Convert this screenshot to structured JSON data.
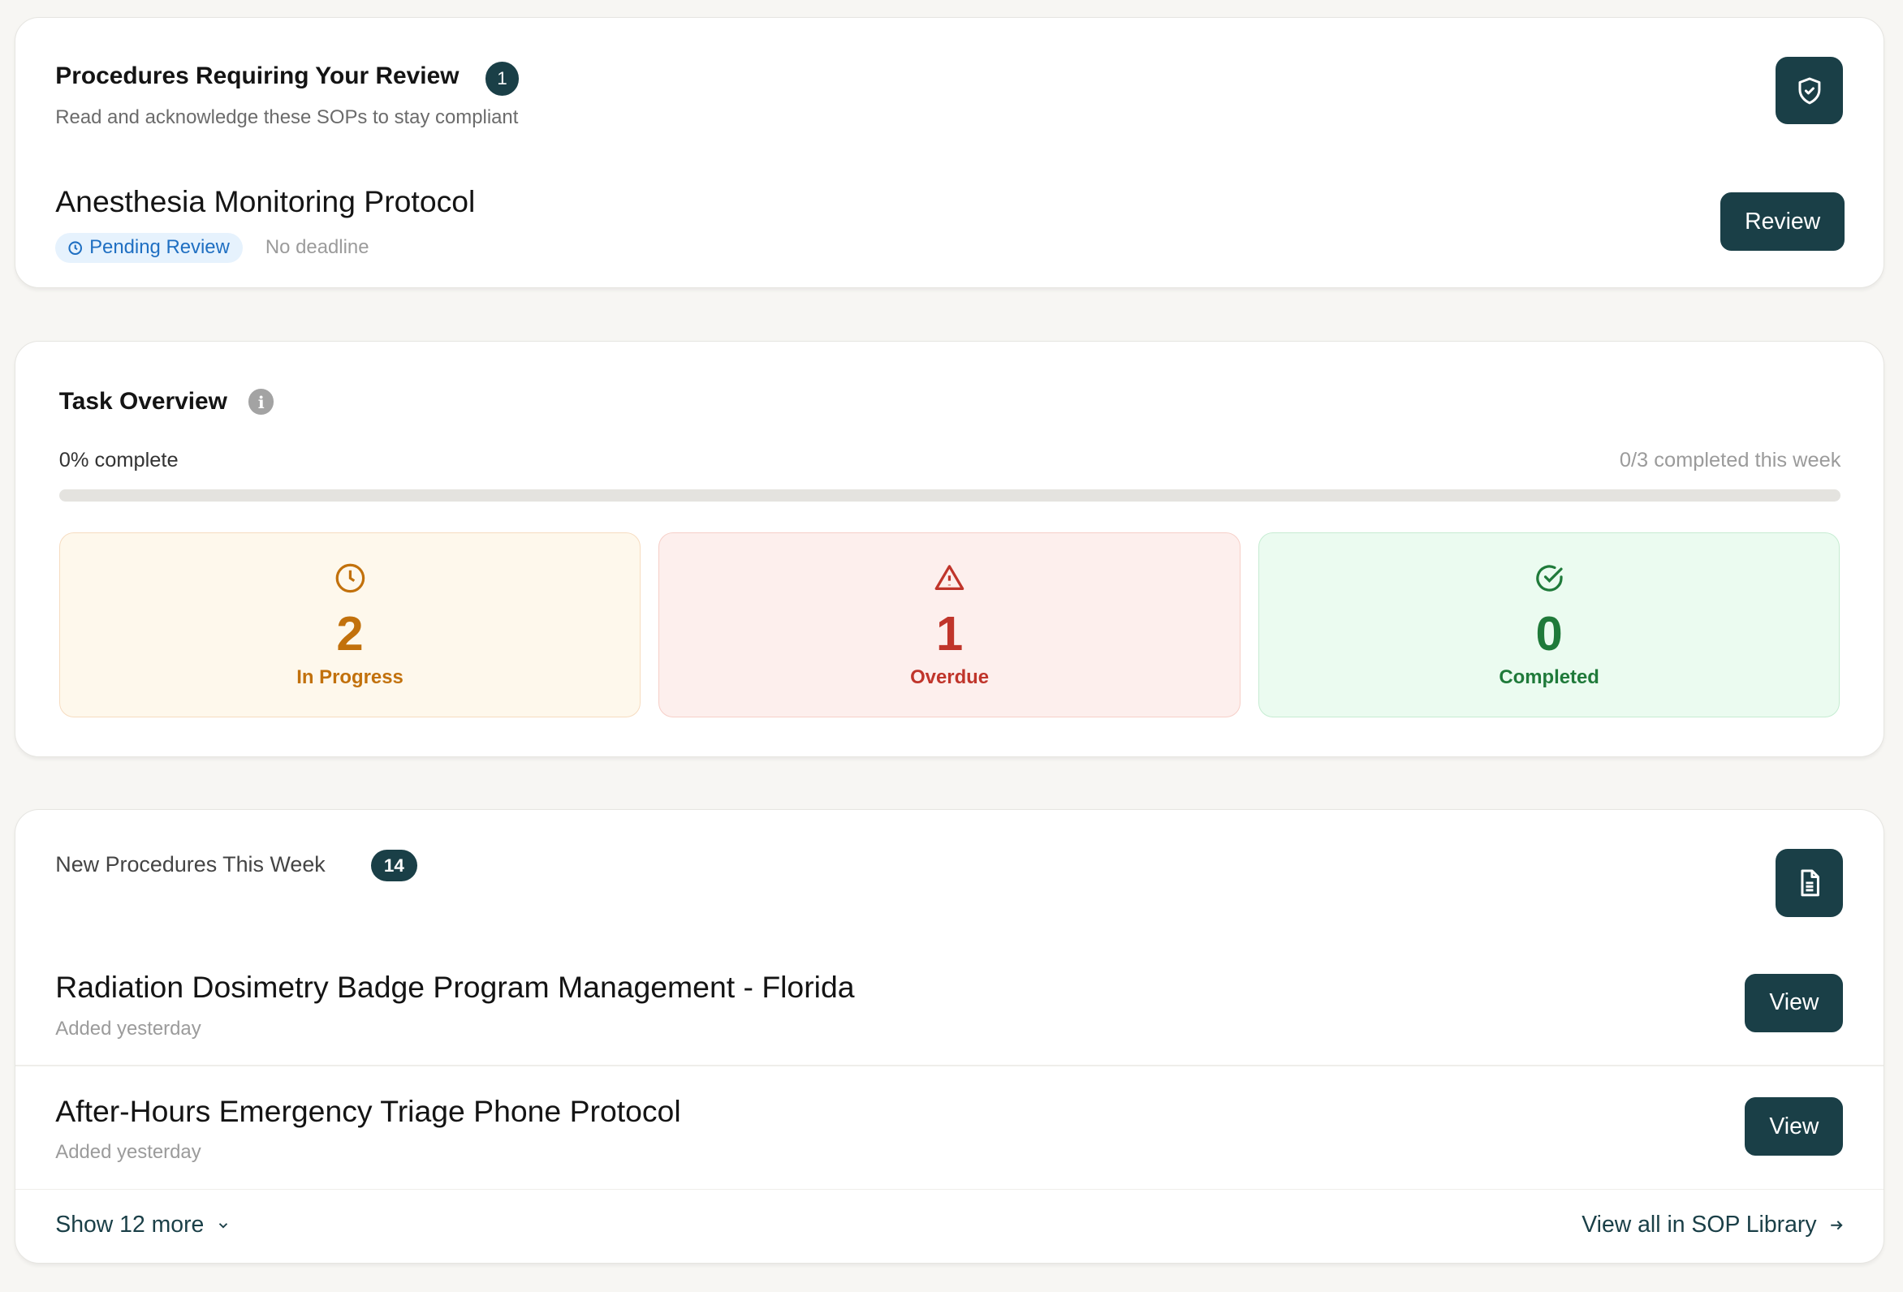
{
  "review": {
    "title": "Procedures Requiring Your Review",
    "count": "1",
    "subtitle": "Read and acknowledge these SOPs to stay compliant",
    "icon": "shield-check-icon",
    "item": {
      "title": "Anesthesia Monitoring Protocol",
      "status": "Pending Review",
      "deadline": "No deadline",
      "button": "Review"
    }
  },
  "tasks": {
    "title": "Task Overview",
    "percent_label": "0% complete",
    "progress": 0,
    "week_label": "0/3 completed this week",
    "stats": [
      {
        "value": "2",
        "label": "In Progress",
        "color": "#c2710c",
        "bg": "#fef8ec",
        "icon": "clock-icon"
      },
      {
        "value": "1",
        "label": "Overdue",
        "color": "#c0352b",
        "bg": "#fdefed",
        "icon": "warning-triangle-icon"
      },
      {
        "value": "0",
        "label": "Completed",
        "color": "#1f7a3a",
        "bg": "#ebfbf0",
        "icon": "check-circle-icon"
      }
    ]
  },
  "new_procedures": {
    "title": "New Procedures This Week",
    "count": "14",
    "icon": "document-icon",
    "items": [
      {
        "title": "Radiation Dosimetry Badge Program Management - Florida",
        "added": "Added yesterday",
        "button": "View"
      },
      {
        "title": "After-Hours Emergency Triage Phone Protocol",
        "added": "Added yesterday",
        "button": "View"
      }
    ],
    "show_more": "Show 12 more",
    "view_all": "View all in SOP Library"
  },
  "colors": {
    "accent": "#1a3f47",
    "background": "#f7f6f3",
    "pending_bg": "#e6f2fd",
    "pending_text": "#1f6fc2"
  }
}
